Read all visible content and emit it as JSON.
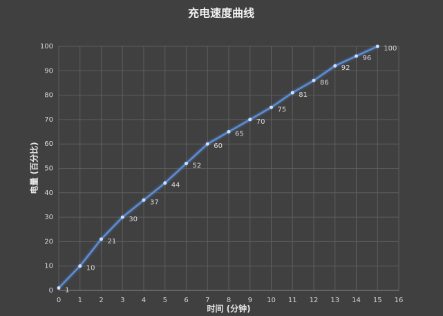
{
  "chart_data": {
    "type": "line",
    "title": "充电速度曲线",
    "x_label": "时间 (分钟)",
    "y_label": "电量 (百分比)",
    "x": [
      0,
      1,
      2,
      3,
      4,
      5,
      6,
      7,
      8,
      9,
      10,
      11,
      12,
      13,
      14,
      15
    ],
    "values": [
      1,
      10,
      21,
      30,
      37,
      44,
      52,
      60,
      65,
      70,
      75,
      81,
      86,
      92,
      96,
      100
    ],
    "color": "#5b8fde",
    "xlim": [
      0,
      16
    ],
    "xticks": [
      0,
      1,
      2,
      3,
      4,
      5,
      6,
      7,
      8,
      9,
      10,
      11,
      12,
      13,
      14,
      15,
      16
    ],
    "ylim": [
      0,
      100
    ],
    "yticks": [
      0,
      10,
      20,
      30,
      40,
      50,
      60,
      70,
      80,
      90,
      100
    ],
    "grid": true
  }
}
